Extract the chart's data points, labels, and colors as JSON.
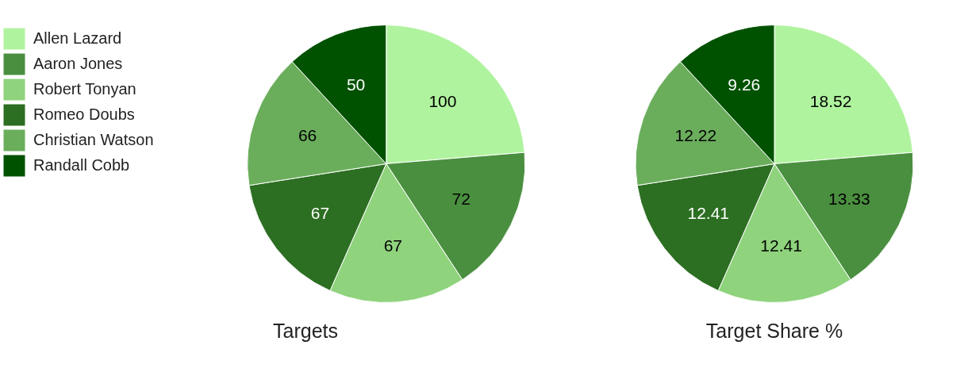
{
  "chart_data": [
    {
      "type": "pie",
      "title": "Targets",
      "categories": [
        "Allen Lazard",
        "Aaron Jones",
        "Robert Tonyan",
        "Romeo Doubs",
        "Christian Watson",
        "Randall Cobb"
      ],
      "values": [
        100,
        72,
        67,
        67,
        66,
        50
      ],
      "colors": [
        "#b0f39f",
        "#4a8f3f",
        "#8fd37d",
        "#2c6e22",
        "#6aae5c",
        "#005200"
      ],
      "data_labels": true,
      "legend": "top left"
    },
    {
      "type": "pie",
      "title": "Target Share %",
      "categories": [
        null,
        null,
        null,
        null,
        null,
        null
      ],
      "values": [
        18.52,
        13.33,
        12.41,
        12.41,
        12.22,
        9.26
      ],
      "colors": [
        "#b0f39f",
        "#4a8f3f",
        "#8fd37d",
        "#2c6e22",
        "#6aae5c",
        "#005200"
      ],
      "data_labels": true,
      "legend": false
    }
  ]
}
